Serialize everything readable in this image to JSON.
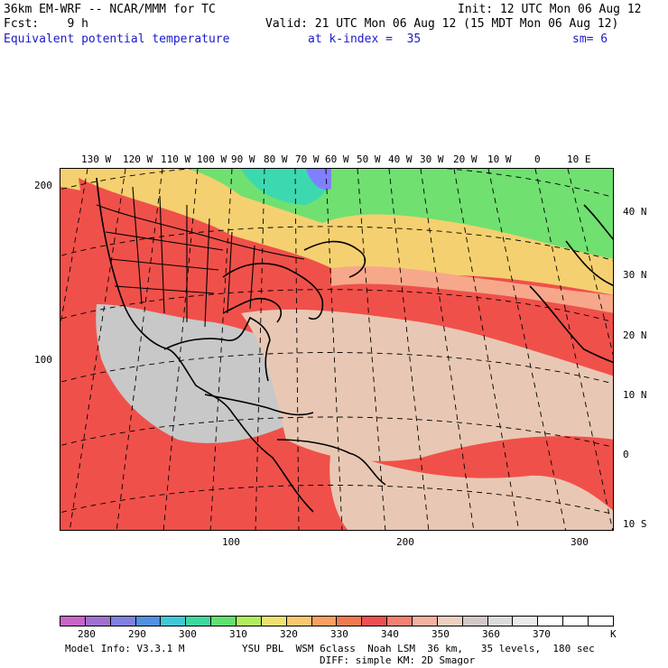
{
  "header": {
    "model": "36km EM-WRF -- NCAR/MMM for TC",
    "init": "Init: 12 UTC Mon 06 Aug 12",
    "fcst": "Fcst:    9 h",
    "valid": "Valid: 21 UTC Mon 06 Aug 12 (15 MDT Mon 06 Aug 12)",
    "field": "Equivalent potential temperature",
    "kindex": "at k-index =  35",
    "sm": "sm= 6"
  },
  "map": {
    "top_longitudes": [
      "130 W",
      "120 W",
      "110 W",
      "100 W",
      "90 W",
      "80 W",
      "70 W",
      "60 W",
      "50 W",
      "40 W",
      "30 W",
      "20 W",
      "10 W",
      "0",
      "10 E"
    ],
    "right_latitudes": [
      "40 N",
      "30 N",
      "20 N",
      "10 N",
      "0",
      "10 S"
    ],
    "left_grid": [
      "200",
      "100"
    ],
    "bottom_grid": [
      "100",
      "200",
      "300"
    ],
    "colors": {
      "hot": "#f0504a",
      "warm": "#f7a88a",
      "tan": "#e8c8b4",
      "gray": "#c8c8c8",
      "mid": "#f5d070",
      "green": "#70e070",
      "cyan": "#3cd8b0",
      "purple": "#8080ff"
    }
  },
  "colorbar": {
    "colors": [
      "#c864c8",
      "#a070d0",
      "#8080e0",
      "#5090e0",
      "#40c8d8",
      "#3cd8a0",
      "#60e070",
      "#b0ec60",
      "#f0e070",
      "#f8c870",
      "#f8a060",
      "#f07a50",
      "#ee5050",
      "#f48070",
      "#f4b0a0",
      "#ecd0c0",
      "#d2c8c8",
      "#dcdcdc",
      "#ebebeb",
      "#ffffff",
      "#ffffff",
      "#ffffff"
    ],
    "labels": [
      "280",
      "290",
      "300",
      "310",
      "320",
      "330",
      "340",
      "350",
      "360",
      "370"
    ],
    "unit": "K"
  },
  "footer": {
    "line1_left": "Model Info: V3.3.1 M",
    "line1_right": "YSU PBL  WSM 6class  Noah LSM  36 km,   35 levels,  180 sec",
    "line2": "DIFF: simple KM: 2D Smagor"
  }
}
